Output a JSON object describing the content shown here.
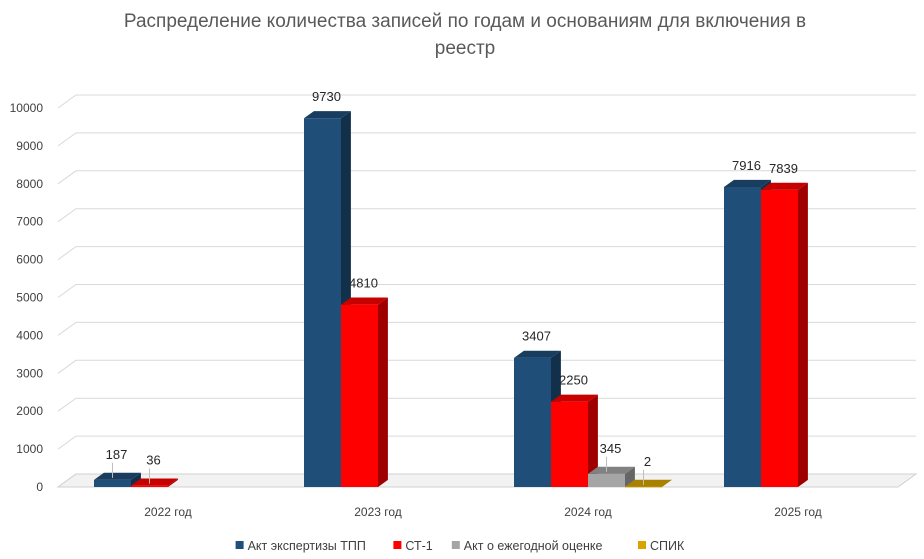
{
  "chart_data": {
    "type": "bar",
    "title_line1": "Распределение количества записей по годам и основаниям для включения в",
    "title_line2": "реестр",
    "categories": [
      "2022 год",
      "2023 год",
      "2024 год",
      "2025 год"
    ],
    "yticks": [
      "0",
      "1000",
      "2000",
      "3000",
      "4000",
      "5000",
      "6000",
      "7000",
      "8000",
      "9000",
      "10000"
    ],
    "ylim": [
      0,
      10000
    ],
    "series": [
      {
        "name": "Акт экспертизы ТПП",
        "color": "#1F4E79",
        "values": [
          187,
          9730,
          3407,
          7916
        ],
        "labels": [
          "187",
          "9730",
          "3407",
          "7916"
        ]
      },
      {
        "name": "СТ-1",
        "color": "#FF0000",
        "values": [
          36,
          4810,
          2250,
          7839
        ],
        "labels": [
          "36",
          "4810",
          "2250",
          "7839"
        ]
      },
      {
        "name": "Акт о ежегодной оценке",
        "color": "#A5A5A5",
        "values": [
          null,
          null,
          345,
          null
        ],
        "labels": [
          "",
          "",
          "345",
          ""
        ]
      },
      {
        "name": "СПИК",
        "color": "#D9A400",
        "values": [
          null,
          null,
          2,
          null
        ],
        "labels": [
          "",
          "",
          "2",
          ""
        ]
      }
    ],
    "legend_position": "bottom",
    "grid": true,
    "style": "3d-clustered-column"
  }
}
